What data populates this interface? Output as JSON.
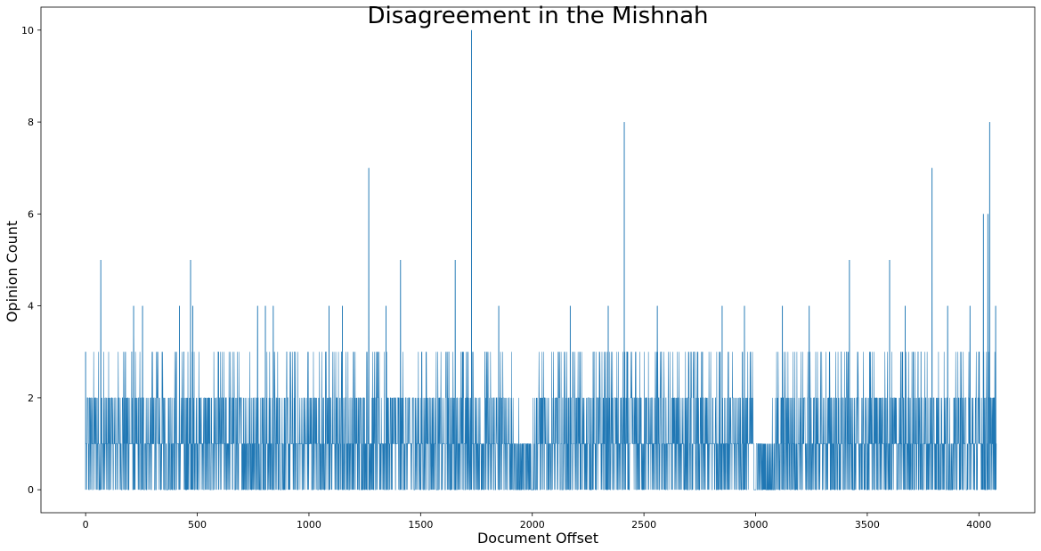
{
  "chart_data": {
    "type": "line",
    "title": "Disagreement in the Mishnah",
    "xlabel": "Document Offset",
    "ylabel": "Opinion Count",
    "xlim": [
      -200,
      4250
    ],
    "ylim": [
      -0.5,
      10.5
    ],
    "xticks": [
      0,
      500,
      1000,
      1500,
      2000,
      2500,
      3000,
      3500,
      4000
    ],
    "yticks": [
      0,
      2,
      4,
      6,
      8,
      10
    ],
    "grid": false,
    "series_color": "#1f77b4",
    "n_points": 4080,
    "peaks": [
      {
        "x": 0,
        "y": 3
      },
      {
        "x": 68,
        "y": 5
      },
      {
        "x": 215,
        "y": 4
      },
      {
        "x": 255,
        "y": 4
      },
      {
        "x": 420,
        "y": 4
      },
      {
        "x": 470,
        "y": 5
      },
      {
        "x": 480,
        "y": 4
      },
      {
        "x": 770,
        "y": 4
      },
      {
        "x": 805,
        "y": 4
      },
      {
        "x": 840,
        "y": 4
      },
      {
        "x": 1090,
        "y": 4
      },
      {
        "x": 1150,
        "y": 4
      },
      {
        "x": 1268,
        "y": 7
      },
      {
        "x": 1345,
        "y": 4
      },
      {
        "x": 1410,
        "y": 5
      },
      {
        "x": 1655,
        "y": 5
      },
      {
        "x": 1728,
        "y": 10
      },
      {
        "x": 1850,
        "y": 4
      },
      {
        "x": 2170,
        "y": 4
      },
      {
        "x": 2340,
        "y": 4
      },
      {
        "x": 2412,
        "y": 8
      },
      {
        "x": 2560,
        "y": 4
      },
      {
        "x": 2850,
        "y": 4
      },
      {
        "x": 2950,
        "y": 4
      },
      {
        "x": 3120,
        "y": 4
      },
      {
        "x": 3240,
        "y": 4
      },
      {
        "x": 3420,
        "y": 5
      },
      {
        "x": 3600,
        "y": 5
      },
      {
        "x": 3670,
        "y": 4
      },
      {
        "x": 3790,
        "y": 7
      },
      {
        "x": 3860,
        "y": 4
      },
      {
        "x": 3960,
        "y": 4
      },
      {
        "x": 4020,
        "y": 6
      },
      {
        "x": 4040,
        "y": 6
      },
      {
        "x": 4048,
        "y": 8
      },
      {
        "x": 4075,
        "y": 4
      }
    ]
  }
}
